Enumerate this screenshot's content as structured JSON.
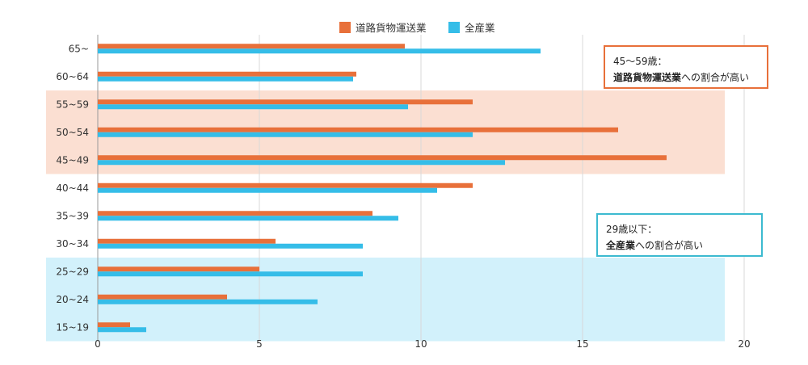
{
  "chart_data": {
    "type": "bar",
    "orientation": "horizontal",
    "categories": [
      "65~",
      "60~64",
      "55~59",
      "50~54",
      "45~49",
      "40~44",
      "35~39",
      "30~34",
      "25~29",
      "20~24",
      "15~19"
    ],
    "series": [
      {
        "name": "道路貨物運送業",
        "color": "#e8703a",
        "values": [
          9.5,
          8.0,
          11.6,
          16.1,
          17.6,
          11.6,
          8.5,
          5.5,
          5.0,
          4.0,
          1.0
        ]
      },
      {
        "name": "全産業",
        "color": "#35bde8",
        "values": [
          13.7,
          7.9,
          9.6,
          11.6,
          12.6,
          10.5,
          9.3,
          8.2,
          8.2,
          6.8,
          1.5
        ]
      }
    ],
    "xlim": [
      0,
      20
    ],
    "xticks": [
      "0",
      "5",
      "10",
      "15",
      "20"
    ],
    "grid": true,
    "legend_position": "top-center",
    "highlights": [
      {
        "categories": [
          "55~59",
          "50~54",
          "45~49"
        ],
        "color": "#fbdfd2"
      },
      {
        "categories": [
          "25~29",
          "20~24",
          "15~19"
        ],
        "color": "#d2f1fb"
      }
    ],
    "annotations": [
      {
        "line1": "45〜59歳：",
        "bold": "道路貨物運送業",
        "rest": "への割合が高い",
        "border": "#e8703a"
      },
      {
        "line1": "29歳以下：",
        "bold": "全産業",
        "rest": "への割合が高い",
        "border": "#3cbad0"
      }
    ]
  }
}
